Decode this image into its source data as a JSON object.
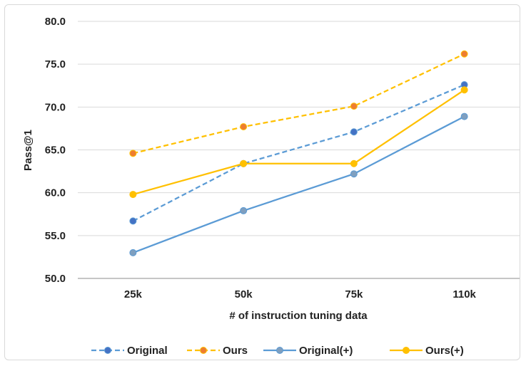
{
  "chart_data": {
    "type": "line",
    "title": "",
    "xlabel": "# of instruction tuning data",
    "ylabel": "Pass@1",
    "categories": [
      "25k",
      "50k",
      "75k",
      "110k"
    ],
    "ylim": [
      50.0,
      80.0
    ],
    "yticks": [
      "50.0",
      "55.0",
      "60.0",
      "65.0",
      "70.0",
      "75.0",
      "80.0"
    ],
    "grid": "horizontal",
    "legend": "bottom",
    "series": [
      {
        "name": "Original",
        "values": [
          56.7,
          63.4,
          67.1,
          72.6
        ],
        "color": "#5b9bd5",
        "marker": "#4472c4",
        "dash": "dashed"
      },
      {
        "name": "Ours",
        "values": [
          64.6,
          67.7,
          70.1,
          76.2
        ],
        "color": "#ffc000",
        "marker": "#ed7d31",
        "dash": "dashed"
      },
      {
        "name": "Original(+)",
        "values": [
          53.0,
          57.9,
          62.2,
          68.9
        ],
        "color": "#5b9bd5",
        "marker": "#7f9fbf",
        "dash": "solid"
      },
      {
        "name": "Ours(+)",
        "values": [
          59.8,
          63.4,
          63.4,
          72.0
        ],
        "color": "#ffc000",
        "marker": "#ffc000",
        "dash": "solid"
      }
    ]
  }
}
